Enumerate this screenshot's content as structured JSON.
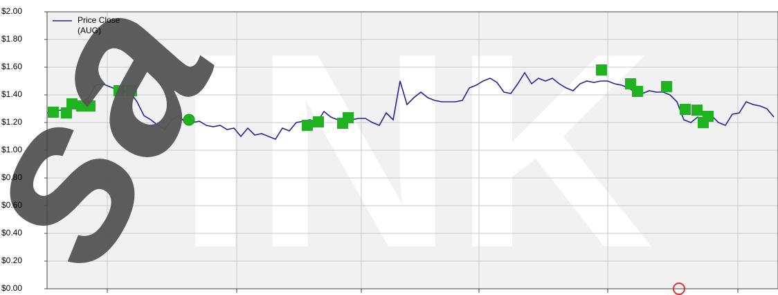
{
  "chart_data": {
    "type": "line",
    "watermark": [
      "sa",
      "INK"
    ],
    "legend": [
      "Price Close",
      "(AUG)"
    ],
    "line_color": "#22229a",
    "values": [
      1.27,
      1.28,
      1.29,
      1.3,
      1.33,
      1.35,
      1.38,
      1.47,
      1.48,
      1.46,
      1.44,
      1.43,
      1.42,
      1.35,
      1.25,
      1.22,
      1.18,
      1.15,
      1.22,
      1.25,
      1.2,
      1.2,
      1.21,
      1.18,
      1.17,
      1.18,
      1.15,
      1.16,
      1.1,
      1.16,
      1.11,
      1.12,
      1.1,
      1.08,
      1.16,
      1.14,
      1.2,
      1.21,
      1.22,
      1.2,
      1.28,
      1.24,
      1.22,
      1.23,
      1.22,
      1.23,
      1.23,
      1.2,
      1.18,
      1.27,
      1.22,
      1.5,
      1.33,
      1.38,
      1.42,
      1.38,
      1.36,
      1.35,
      1.35,
      1.35,
      1.36,
      1.45,
      1.47,
      1.5,
      1.52,
      1.49,
      1.42,
      1.41,
      1.48,
      1.56,
      1.48,
      1.52,
      1.5,
      1.52,
      1.48,
      1.45,
      1.43,
      1.48,
      1.5,
      1.49,
      1.5,
      1.5,
      1.48,
      1.47,
      1.45,
      1.42,
      1.41,
      1.43,
      1.42,
      1.42,
      1.4,
      1.35,
      1.22,
      1.2,
      1.24,
      1.22,
      1.25,
      1.2,
      1.18,
      1.26,
      1.27,
      1.35,
      1.33,
      1.32,
      1.3,
      1.24
    ],
    "square_markers": {
      "color": "#1fb41f",
      "x": [
        0.9,
        2.8,
        3.6,
        5.0,
        6.2,
        10.4,
        12.2,
        37.6,
        39.2,
        42.7,
        43.5,
        80.1,
        84.3,
        85.3,
        89.5,
        92.2,
        93.9,
        94.8,
        95.5
      ],
      "values": [
        1.275,
        1.27,
        1.335,
        1.32,
        1.32,
        1.43,
        1.43,
        1.18,
        1.205,
        1.195,
        1.235,
        1.58,
        1.48,
        1.425,
        1.46,
        1.295,
        1.29,
        1.2,
        1.245
      ]
    },
    "circle_markers": {
      "color": "#1fb41f",
      "x": [
        20.5
      ],
      "values": [
        1.22
      ]
    },
    "open_circle_markers": {
      "color": "#e03030",
      "x": [
        91.3
      ],
      "values": [
        0
      ]
    },
    "xlim": [
      0,
      105.6
    ],
    "xticks": [
      8.7,
      27.4,
      45.4,
      62.4,
      81,
      99.8
    ],
    "ylim": [
      0,
      2
    ],
    "yticks": [
      {
        "value": 0,
        "label": "$0.00"
      },
      {
        "value": 0.2,
        "label": "$0.20"
      },
      {
        "value": 0.4,
        "label": "$0.40"
      },
      {
        "value": 0.6,
        "label": "$0.60"
      },
      {
        "value": 0.8,
        "label": "$0.80"
      },
      {
        "value": 1,
        "label": "$1.00"
      },
      {
        "value": 1.2,
        "label": "$1.20"
      },
      {
        "value": 1.4,
        "label": "$1.40"
      },
      {
        "value": 1.6,
        "label": "$1.60"
      },
      {
        "value": 1.8,
        "label": "$1.80"
      },
      {
        "value": 2,
        "label": "$2.00"
      }
    ],
    "grid": true
  }
}
